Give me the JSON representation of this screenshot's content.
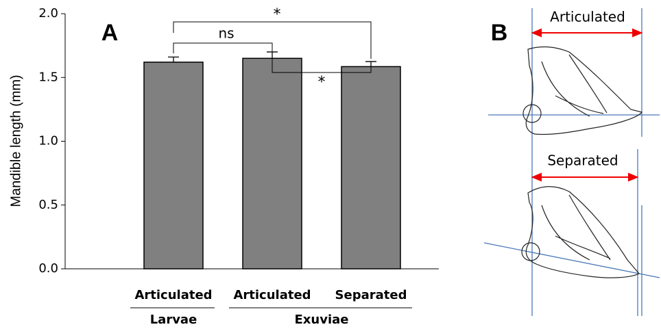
{
  "chart_data": {
    "type": "bar",
    "panel_label": "A",
    "ylabel": "Mandible length (mm)",
    "categories": [
      "Articulated",
      "Articulated",
      "Separated"
    ],
    "groups": [
      {
        "name": "Larvae",
        "size": 1
      },
      {
        "name": "Exuviae",
        "size": 2
      }
    ],
    "values": [
      1.62,
      1.65,
      1.585
    ],
    "errors": [
      0.04,
      0.05,
      0.04
    ],
    "color": "#808080",
    "ylim": [
      0,
      2
    ],
    "yticks": [
      {
        "value": 0,
        "label": "0.0"
      },
      {
        "value": 0.5,
        "label": "0.5"
      },
      {
        "value": 1,
        "label": "1.0"
      },
      {
        "value": 1.5,
        "label": "1.5"
      },
      {
        "value": 2,
        "label": "2.0"
      }
    ],
    "annotations": [
      "ns",
      "*",
      "*"
    ]
  },
  "diagram": {
    "panel_label": "B",
    "labels": [
      "Articulated",
      "Separated"
    ]
  }
}
